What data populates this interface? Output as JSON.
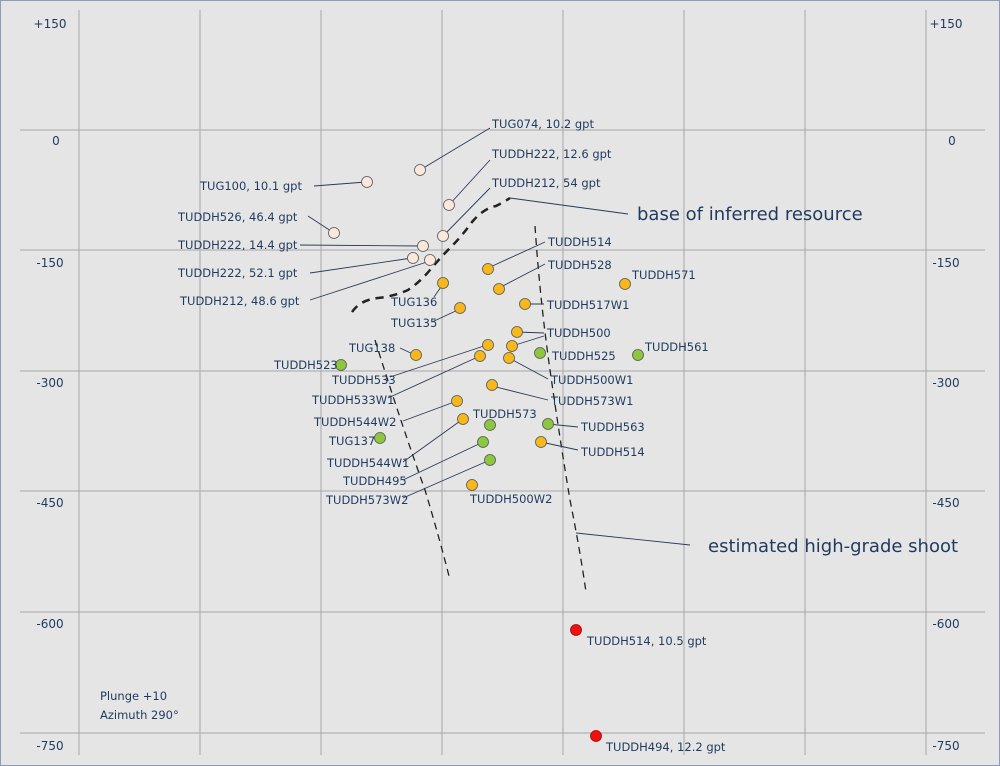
{
  "colors": {
    "background": "#e5e5e5",
    "grid": "#a8a8a8",
    "text": "#1f3a5f",
    "leader": "#2a3a55",
    "dashed": "#222222",
    "low_grade_fill": "#fbe8dd",
    "mid_grade_fill": "#f6b81c",
    "green_fill": "#8dc63f",
    "high_grade_fill": "#ee1111"
  },
  "y_axis_labels": [
    "+150",
    "0",
    "-150",
    "-300",
    "-450",
    "-600",
    "-750"
  ],
  "notes": {
    "plunge": "Plunge +10",
    "azimuth": "Azimuth 290°"
  },
  "annotations": {
    "base_resource": "base of inferred resource",
    "high_grade_shoot": "estimated high-grade shoot"
  },
  "labels": {
    "tug074": "TUG074, 10.2 gpt",
    "tuddh222_a": "TUDDH222, 12.6 gpt",
    "tuddh212_a": "TUDDH212, 54 gpt",
    "tug100": "TUG100, 10.1 gpt",
    "tuddh526": "TUDDH526, 46.4 gpt",
    "tuddh222_b": "TUDDH222, 14.4 gpt",
    "tuddh222_c": "TUDDH222, 52.1 gpt",
    "tuddh212_b": "TUDDH212, 48.6 gpt",
    "tuddh514_a": "TUDDH514",
    "tuddh528": "TUDDH528",
    "tuddh571": "TUDDH571",
    "tuddh517w1": "TUDDH517W1",
    "tug136": "TUG136",
    "tug135": "TUG135",
    "tuddh500": "TUDDH500",
    "tug138": "TUG138",
    "tuddh525": "TUDDH525",
    "tuddh561": "TUDDH561",
    "tuddh523": "TUDDH523",
    "tuddh533": "TUDDH533",
    "tuddh500w1": "TUDDH500W1",
    "tuddh533w1": "TUDDH533W1",
    "tuddh573w1": "TUDDH573W1",
    "tuddh544w2": "TUDDH544W2",
    "tuddh573": "TUDDH573",
    "tuddh563": "TUDDH563",
    "tug137": "TUG137",
    "tuddh514_b": "TUDDH514",
    "tuddh544w1": "TUDDH544W1",
    "tuddh495": "TUDDH495",
    "tuddh573w2": "TUDDH573W2",
    "tuddh500w2": "TUDDH500W2",
    "tuddh514_c": "TUDDH514, 10.5 gpt",
    "tuddh494": "TUDDH494, 12.2 gpt"
  }
}
